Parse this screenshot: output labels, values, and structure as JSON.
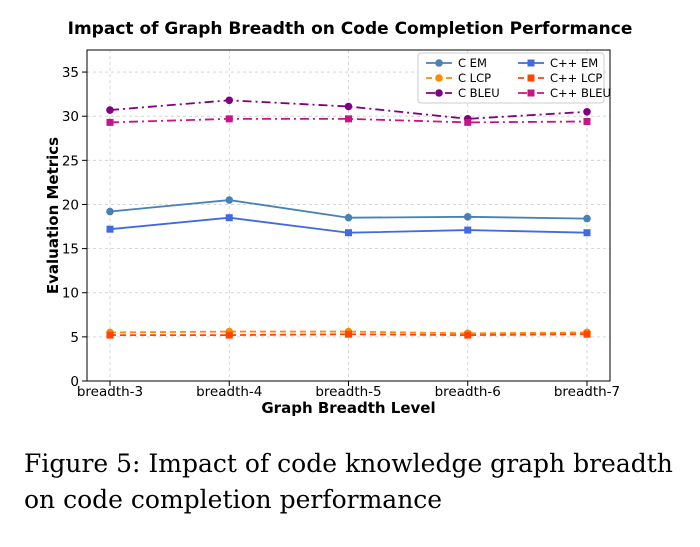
{
  "chart_data": {
    "type": "line",
    "title": "Impact of Graph Breadth on Code Completion Performance",
    "xlabel": "Graph Breadth Level",
    "ylabel": "Evaluation Metrics",
    "categories": [
      "breadth-3",
      "breadth-4",
      "breadth-5",
      "breadth-6",
      "breadth-7"
    ],
    "ylim": [
      0,
      37.5
    ],
    "yticks": [
      0,
      5,
      10,
      15,
      20,
      25,
      30,
      35
    ],
    "grid": true,
    "legend_position": "top-right",
    "series": [
      {
        "name": "C EM",
        "values": [
          19.2,
          20.5,
          18.5,
          18.6,
          18.4
        ],
        "color": "#4682b4",
        "marker": "circle",
        "dash": "solid"
      },
      {
        "name": "C++ EM",
        "values": [
          17.2,
          18.5,
          16.8,
          17.1,
          16.8
        ],
        "color": "#4169e1",
        "marker": "square",
        "dash": "solid"
      },
      {
        "name": "C LCP",
        "values": [
          5.5,
          5.6,
          5.6,
          5.4,
          5.5
        ],
        "color": "#ff8c00",
        "marker": "circle",
        "dash": "dashed"
      },
      {
        "name": "C++ LCP",
        "values": [
          5.2,
          5.2,
          5.3,
          5.2,
          5.3
        ],
        "color": "#ff4500",
        "marker": "square",
        "dash": "dashed"
      },
      {
        "name": "C BLEU",
        "values": [
          30.7,
          31.8,
          31.1,
          29.7,
          30.5
        ],
        "color": "#800080",
        "marker": "circle",
        "dash": "dashdot"
      },
      {
        "name": "C++ BLEU",
        "values": [
          29.3,
          29.7,
          29.7,
          29.3,
          29.4
        ],
        "color": "#c71585",
        "marker": "square",
        "dash": "dashdot"
      }
    ]
  },
  "caption": "Figure 5: Impact of code knowledge graph breadth on code completion performance"
}
